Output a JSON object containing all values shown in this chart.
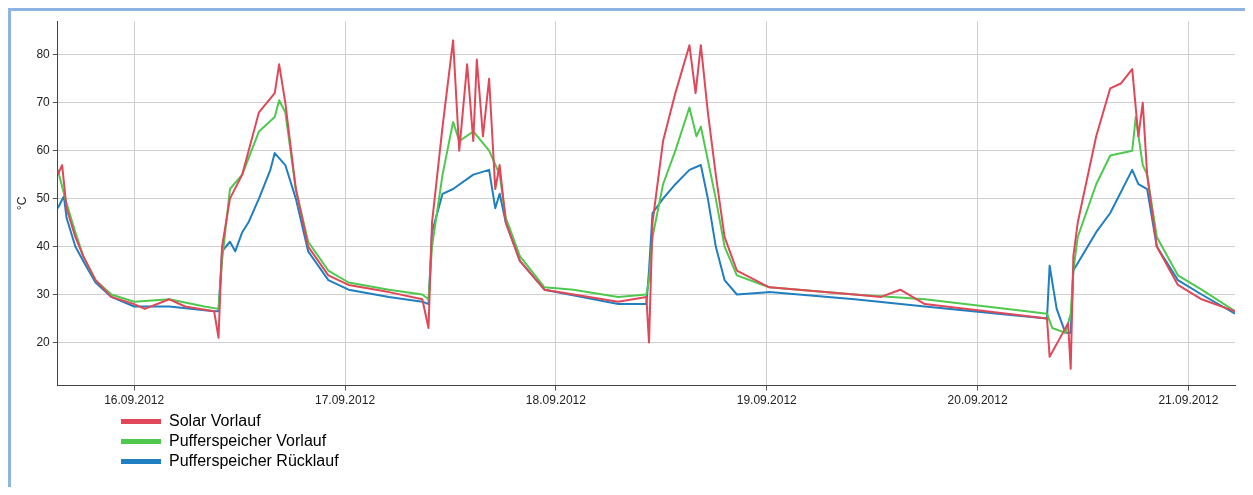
{
  "chart_data": {
    "type": "line",
    "ylabel": "°C",
    "xlim": [
      "2012-09-15T15:18",
      "2012-09-21T05:18"
    ],
    "xticks": [
      {
        "value": "2012-09-16T00:00",
        "label": "16.09.2012"
      },
      {
        "value": "2012-09-17T00:00",
        "label": "17.09.2012"
      },
      {
        "value": "2012-09-18T00:00",
        "label": "18.09.2012"
      },
      {
        "value": "2012-09-19T00:00",
        "label": "19.09.2012"
      },
      {
        "value": "2012-09-20T00:00",
        "label": "20.09.2012"
      },
      {
        "value": "2012-09-21T00:00",
        "label": "21.09.2012"
      }
    ],
    "ylim": [
      11,
      87
    ],
    "yticks": [
      20,
      30,
      40,
      50,
      60,
      70,
      80
    ],
    "grid": true,
    "legend": "bottom left",
    "marker": "none",
    "line_style": "solid",
    "series": [
      {
        "name": "Solar Vorlauf",
        "color": "#e0485a",
        "x": [
          "2012-09-15T15:18",
          "2012-09-15T15:48",
          "2012-09-15T16:18",
          "2012-09-15T17:18",
          "2012-09-15T18:12",
          "2012-09-15T19:36",
          "2012-09-15T21:24",
          "2012-09-16T00:00",
          "2012-09-16T01:12",
          "2012-09-16T04:00",
          "2012-09-16T05:48",
          "2012-09-16T09:06",
          "2012-09-16T09:36",
          "2012-09-16T10:00",
          "2012-09-16T10:54",
          "2012-09-16T12:18",
          "2012-09-16T14:12",
          "2012-09-16T16:00",
          "2012-09-16T16:30",
          "2012-09-16T17:12",
          "2012-09-16T18:24",
          "2012-09-16T19:48",
          "2012-09-16T22:06",
          "2012-09-17T00:24",
          "2012-09-17T05:00",
          "2012-09-17T08:48",
          "2012-09-17T09:30",
          "2012-09-17T09:54",
          "2012-09-17T11:06",
          "2012-09-17T12:18",
          "2012-09-17T13:00",
          "2012-09-17T13:54",
          "2012-09-17T14:36",
          "2012-09-17T15:00",
          "2012-09-17T15:42",
          "2012-09-17T16:24",
          "2012-09-17T17:06",
          "2012-09-17T17:36",
          "2012-09-17T18:18",
          "2012-09-17T19:54",
          "2012-09-17T22:42",
          "2012-09-18T07:06",
          "2012-09-18T10:18",
          "2012-09-18T10:36",
          "2012-09-18T11:00",
          "2012-09-18T12:12",
          "2012-09-18T13:36",
          "2012-09-18T15:12",
          "2012-09-18T15:54",
          "2012-09-18T16:30",
          "2012-09-18T17:18",
          "2012-09-18T18:12",
          "2012-09-18T19:12",
          "2012-09-18T20:36",
          "2012-09-19T00:18",
          "2012-09-19T10:00",
          "2012-09-19T13:00",
          "2012-09-19T15:12",
          "2012-09-19T18:00",
          "2012-09-20T07:54",
          "2012-09-20T08:12",
          "2012-09-20T09:42",
          "2012-09-20T10:18",
          "2012-09-20T10:36",
          "2012-09-20T10:54",
          "2012-09-20T11:24",
          "2012-09-20T13:30",
          "2012-09-20T15:06",
          "2012-09-20T16:18",
          "2012-09-20T17:36",
          "2012-09-20T18:18",
          "2012-09-20T18:48",
          "2012-09-20T19:18",
          "2012-09-20T20:24",
          "2012-09-20T22:48",
          "2012-09-21T01:30",
          "2012-09-21T05:18"
        ],
        "values": [
          55,
          57,
          48,
          42,
          38,
          33,
          29.5,
          28,
          27,
          29,
          27.5,
          26.5,
          21,
          40,
          50,
          55,
          68,
          72,
          78,
          70,
          52,
          40,
          34,
          32,
          30.5,
          29,
          23,
          45,
          65,
          83,
          60,
          78,
          62,
          79,
          63,
          75,
          52,
          57,
          45,
          37,
          31,
          28.5,
          29.5,
          20,
          45,
          62,
          72,
          82,
          72,
          82,
          68,
          55,
          42,
          35,
          31.5,
          30,
          29.5,
          31,
          28,
          25,
          17,
          22,
          24,
          14.5,
          38,
          45,
          63,
          73,
          74,
          77,
          63,
          70,
          55,
          40,
          32,
          29,
          26.5
        ]
      },
      {
        "name": "Pufferspeicher Vorlauf",
        "color": "#4ec94e",
        "x": [
          "2012-09-15T15:18",
          "2012-09-15T16:18",
          "2012-09-15T17:18",
          "2012-09-15T18:12",
          "2012-09-15T19:36",
          "2012-09-15T21:24",
          "2012-09-16T00:00",
          "2012-09-16T04:00",
          "2012-09-16T08:00",
          "2012-09-16T09:36",
          "2012-09-16T10:00",
          "2012-09-16T10:54",
          "2012-09-16T12:18",
          "2012-09-16T14:12",
          "2012-09-16T16:00",
          "2012-09-16T16:30",
          "2012-09-16T17:12",
          "2012-09-16T18:24",
          "2012-09-16T19:48",
          "2012-09-16T22:06",
          "2012-09-17T00:24",
          "2012-09-17T05:00",
          "2012-09-17T08:48",
          "2012-09-17T09:30",
          "2012-09-17T09:54",
          "2012-09-17T11:06",
          "2012-09-17T12:18",
          "2012-09-17T13:00",
          "2012-09-17T14:36",
          "2012-09-17T16:24",
          "2012-09-17T17:36",
          "2012-09-17T18:18",
          "2012-09-17T19:54",
          "2012-09-17T22:42",
          "2012-09-18T02:00",
          "2012-09-18T07:06",
          "2012-09-18T10:18",
          "2012-09-18T10:36",
          "2012-09-18T11:00",
          "2012-09-18T12:12",
          "2012-09-18T13:36",
          "2012-09-18T15:12",
          "2012-09-18T16:00",
          "2012-09-18T16:30",
          "2012-09-18T17:18",
          "2012-09-18T18:12",
          "2012-09-18T19:12",
          "2012-09-18T20:36",
          "2012-09-19T00:18",
          "2012-09-19T10:00",
          "2012-09-19T18:00",
          "2012-09-20T07:54",
          "2012-09-20T08:30",
          "2012-09-20T10:00",
          "2012-09-20T10:36",
          "2012-09-20T10:54",
          "2012-09-20T11:24",
          "2012-09-20T13:30",
          "2012-09-20T15:06",
          "2012-09-20T17:36",
          "2012-09-20T18:00",
          "2012-09-20T18:48",
          "2012-09-20T19:18",
          "2012-09-20T20:24",
          "2012-09-20T22:48",
          "2012-09-21T01:30",
          "2012-09-21T05:18"
        ],
        "values": [
          56,
          49,
          43,
          38,
          33,
          30,
          28.5,
          29,
          27.5,
          27,
          37,
          52,
          55,
          64,
          67,
          70.5,
          68,
          52,
          41,
          35,
          32.5,
          31,
          30,
          29,
          40,
          55,
          66,
          62,
          64,
          60,
          55,
          46,
          38,
          31.5,
          31,
          29.5,
          30,
          33,
          42,
          53,
          60,
          69,
          63,
          65,
          58,
          50,
          40,
          34,
          31.5,
          30,
          29,
          26,
          23,
          22,
          26,
          35,
          42,
          53,
          59,
          60,
          67,
          57,
          55,
          42,
          34,
          31,
          26.5
        ]
      },
      {
        "name": "Pufferspeicher Rücklauf",
        "color": "#1f7fc0",
        "x": [
          "2012-09-15T15:18",
          "2012-09-15T16:00",
          "2012-09-15T16:18",
          "2012-09-15T17:18",
          "2012-09-15T18:12",
          "2012-09-15T19:36",
          "2012-09-15T21:24",
          "2012-09-16T00:00",
          "2012-09-16T04:00",
          "2012-09-16T09:06",
          "2012-09-16T09:36",
          "2012-09-16T10:00",
          "2012-09-16T10:54",
          "2012-09-16T11:30",
          "2012-09-16T12:18",
          "2012-09-16T13:00",
          "2012-09-16T14:12",
          "2012-09-16T15:30",
          "2012-09-16T16:00",
          "2012-09-16T17:12",
          "2012-09-16T18:24",
          "2012-09-16T19:48",
          "2012-09-16T22:06",
          "2012-09-17T00:24",
          "2012-09-17T05:00",
          "2012-09-17T08:48",
          "2012-09-17T09:30",
          "2012-09-17T09:54",
          "2012-09-17T11:06",
          "2012-09-17T12:18",
          "2012-09-17T14:36",
          "2012-09-17T16:24",
          "2012-09-17T17:06",
          "2012-09-17T17:36",
          "2012-09-17T18:18",
          "2012-09-17T19:54",
          "2012-09-17T22:42",
          "2012-09-18T07:06",
          "2012-09-18T10:18",
          "2012-09-18T10:36",
          "2012-09-18T11:00",
          "2012-09-18T12:12",
          "2012-09-18T13:36",
          "2012-09-18T15:12",
          "2012-09-18T16:30",
          "2012-09-18T17:18",
          "2012-09-18T18:12",
          "2012-09-18T19:12",
          "2012-09-18T20:36",
          "2012-09-19T00:18",
          "2012-09-19T10:00",
          "2012-09-19T18:00",
          "2012-09-20T07:54",
          "2012-09-20T08:12",
          "2012-09-20T09:00",
          "2012-09-20T10:00",
          "2012-09-20T10:36",
          "2012-09-20T10:54",
          "2012-09-20T13:30",
          "2012-09-20T15:06",
          "2012-09-20T17:36",
          "2012-09-20T18:18",
          "2012-09-20T19:18",
          "2012-09-20T20:24",
          "2012-09-20T22:48",
          "2012-09-21T01:30",
          "2012-09-21T05:18"
        ],
        "values": [
          48,
          50.5,
          46,
          40,
          37,
          32.5,
          29.5,
          27.5,
          27.5,
          26.5,
          26.5,
          39,
          41,
          39,
          43,
          45,
          50,
          56,
          59.5,
          57,
          50,
          39,
          33,
          31,
          29.5,
          28.5,
          28,
          43,
          51,
          52,
          55,
          56,
          48,
          51,
          45,
          37,
          31,
          28,
          28,
          35,
          47,
          50,
          53,
          56,
          57,
          50,
          40,
          33,
          30,
          30.5,
          29,
          27.5,
          25,
          36,
          27,
          22,
          22,
          35,
          43,
          47,
          56,
          53,
          52,
          40,
          33,
          30,
          26
        ]
      }
    ]
  }
}
